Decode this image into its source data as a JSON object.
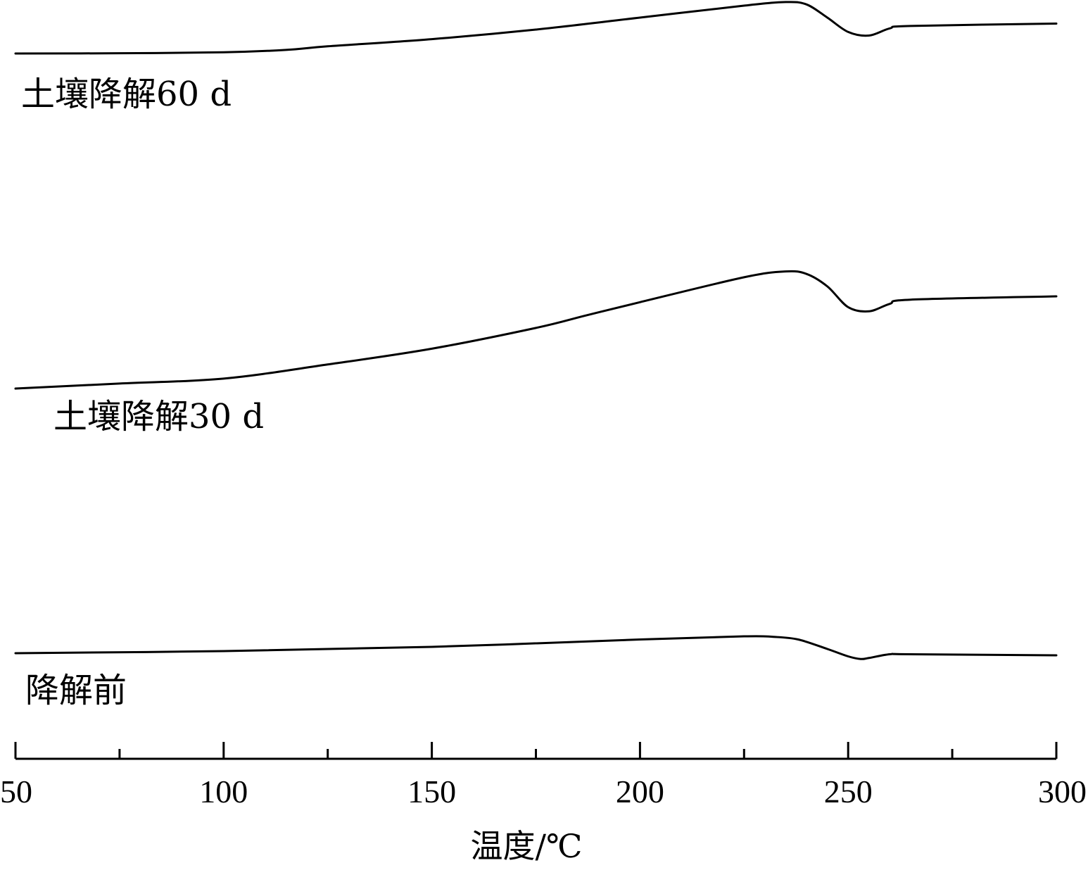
{
  "chart_data": {
    "type": "line",
    "title": "",
    "xlabel": "温度/℃",
    "ylabel": "",
    "xlim": [
      50,
      300
    ],
    "x_ticks": [
      50,
      100,
      150,
      200,
      250,
      300
    ],
    "x_tick_labels": [
      "50",
      "100",
      "150",
      "200",
      "250",
      "300"
    ],
    "x_minor_step": 25,
    "y_axis_shown": false,
    "grid": false,
    "legend": "inline labels under each curve",
    "line_color": "#000000",
    "series": [
      {
        "name": "土壤降解60 d",
        "points": [
          [
            50,
            0.0
          ],
          [
            75,
            0.02
          ],
          [
            100,
            0.1
          ],
          [
            115,
            0.3
          ],
          [
            125,
            0.6
          ],
          [
            150,
            1.2
          ],
          [
            175,
            2.0
          ],
          [
            200,
            3.0
          ],
          [
            225,
            4.0
          ],
          [
            235,
            4.3
          ],
          [
            240,
            4.1
          ],
          [
            245,
            3.0
          ],
          [
            250,
            1.8
          ],
          [
            255,
            1.5
          ],
          [
            260,
            2.1
          ],
          [
            265,
            2.3
          ],
          [
            300,
            2.5
          ]
        ]
      },
      {
        "name": "土壤降解30 d",
        "points": [
          [
            50,
            0.0
          ],
          [
            75,
            0.6
          ],
          [
            100,
            1.2
          ],
          [
            125,
            2.9
          ],
          [
            150,
            4.8
          ],
          [
            175,
            7.3
          ],
          [
            187,
            8.8
          ],
          [
            200,
            10.4
          ],
          [
            225,
            13.4
          ],
          [
            235,
            14.1
          ],
          [
            240,
            13.8
          ],
          [
            245,
            12.3
          ],
          [
            250,
            9.8
          ],
          [
            255,
            9.3
          ],
          [
            260,
            10.2
          ],
          [
            265,
            10.7
          ],
          [
            300,
            11.1
          ]
        ]
      },
      {
        "name": "降解前",
        "points": [
          [
            50,
            0.0
          ],
          [
            100,
            0.2
          ],
          [
            150,
            0.6
          ],
          [
            200,
            1.3
          ],
          [
            225,
            1.6
          ],
          [
            232,
            1.55
          ],
          [
            238,
            1.3
          ],
          [
            245,
            0.4
          ],
          [
            250,
            -0.3
          ],
          [
            253,
            -0.55
          ],
          [
            255,
            -0.45
          ],
          [
            260,
            -0.1
          ],
          [
            265,
            -0.1
          ],
          [
            300,
            -0.2
          ]
        ]
      }
    ]
  }
}
